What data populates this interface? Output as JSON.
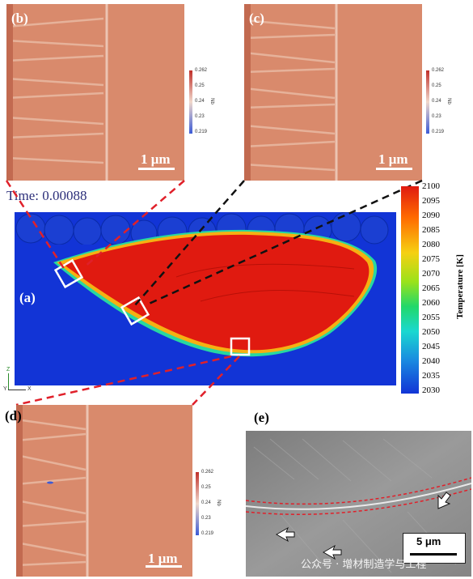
{
  "time_label": "Time: 0.00088",
  "panels": {
    "b": {
      "label": "(b)",
      "scale": "1 μm"
    },
    "c": {
      "label": "(c)",
      "scale": "1 μm"
    },
    "d": {
      "label": "(d)",
      "scale": "1 μm"
    },
    "a": {
      "label": "(a)"
    },
    "e": {
      "label": "(e)",
      "scale": "5 μm"
    }
  },
  "nb_colorbar": {
    "title": "Nb",
    "ticks": [
      "0.262",
      "0.25",
      "0.24",
      "0.23",
      "0.219"
    ]
  },
  "temp_colorbar": {
    "title": "Temperature [K]",
    "ticks": [
      "2100",
      "2095",
      "2090",
      "2085",
      "2080",
      "2075",
      "2070",
      "2065",
      "2060",
      "2055",
      "2050",
      "2045",
      "2040",
      "2035",
      "2030"
    ]
  },
  "axes_triad": {
    "z": "Z",
    "y": "Y",
    "x": "X"
  },
  "watermark": "公众号 · 增材制造学与工程",
  "colors": {
    "melt": "#e01a10",
    "substrate": "#1234d6",
    "sim_bg": "#d98a6a",
    "dashed": "#e0202a"
  }
}
